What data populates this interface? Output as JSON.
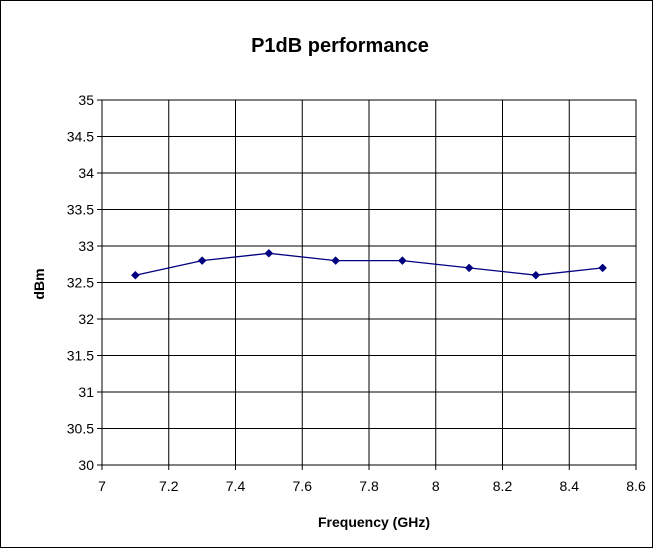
{
  "chart_data": {
    "type": "line",
    "title": "P1dB performance",
    "xlabel": "Frequency (GHz)",
    "ylabel": "dBm",
    "xlim": [
      7,
      8.6
    ],
    "ylim": [
      30,
      35
    ],
    "xticks": [
      "7",
      "7.2",
      "7.4",
      "7.6",
      "7.8",
      "8",
      "8.2",
      "8.4",
      "8.6"
    ],
    "yticks": [
      "30",
      "30.5",
      "31",
      "31.5",
      "32",
      "32.5",
      "33",
      "33.5",
      "34",
      "34.5",
      "35"
    ],
    "grid": true,
    "series": [
      {
        "x": [
          7.1,
          7.3,
          7.5,
          7.7,
          7.9,
          8.1,
          8.3,
          8.5
        ],
        "values": [
          32.6,
          32.8,
          32.9,
          32.8,
          32.8,
          32.7,
          32.6,
          32.7
        ],
        "color": "#000080"
      }
    ]
  }
}
